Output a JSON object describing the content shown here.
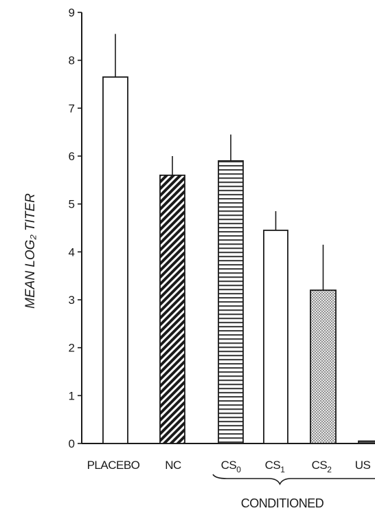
{
  "chart_data": {
    "type": "bar",
    "title": "",
    "ylabel": "MEAN LOG₂ TITER",
    "xlabel": "",
    "ylim": [
      0,
      9
    ],
    "yticks": [
      "0",
      "1",
      "2",
      "3",
      "4",
      "5",
      "6",
      "7",
      "8",
      "9"
    ],
    "categories": [
      {
        "main": "PLACEBO",
        "sub": ""
      },
      {
        "main": "NC",
        "sub": ""
      },
      {
        "main": "CS",
        "sub": "0"
      },
      {
        "main": "CS",
        "sub": "1"
      },
      {
        "main": "CS",
        "sub": "2"
      },
      {
        "main": "US",
        "sub": ""
      }
    ],
    "values": [
      7.65,
      5.6,
      5.9,
      4.45,
      3.2,
      0.05
    ],
    "error_upper": [
      8.55,
      6.0,
      6.45,
      4.85,
      4.15,
      null
    ],
    "patterns": [
      "none",
      "diagonal-hatch",
      "horizontal-lines",
      "none",
      "dots",
      "none"
    ],
    "group_label": "CONDITIONED",
    "group_range": [
      2,
      5
    ],
    "grid": false,
    "legend": "none"
  }
}
